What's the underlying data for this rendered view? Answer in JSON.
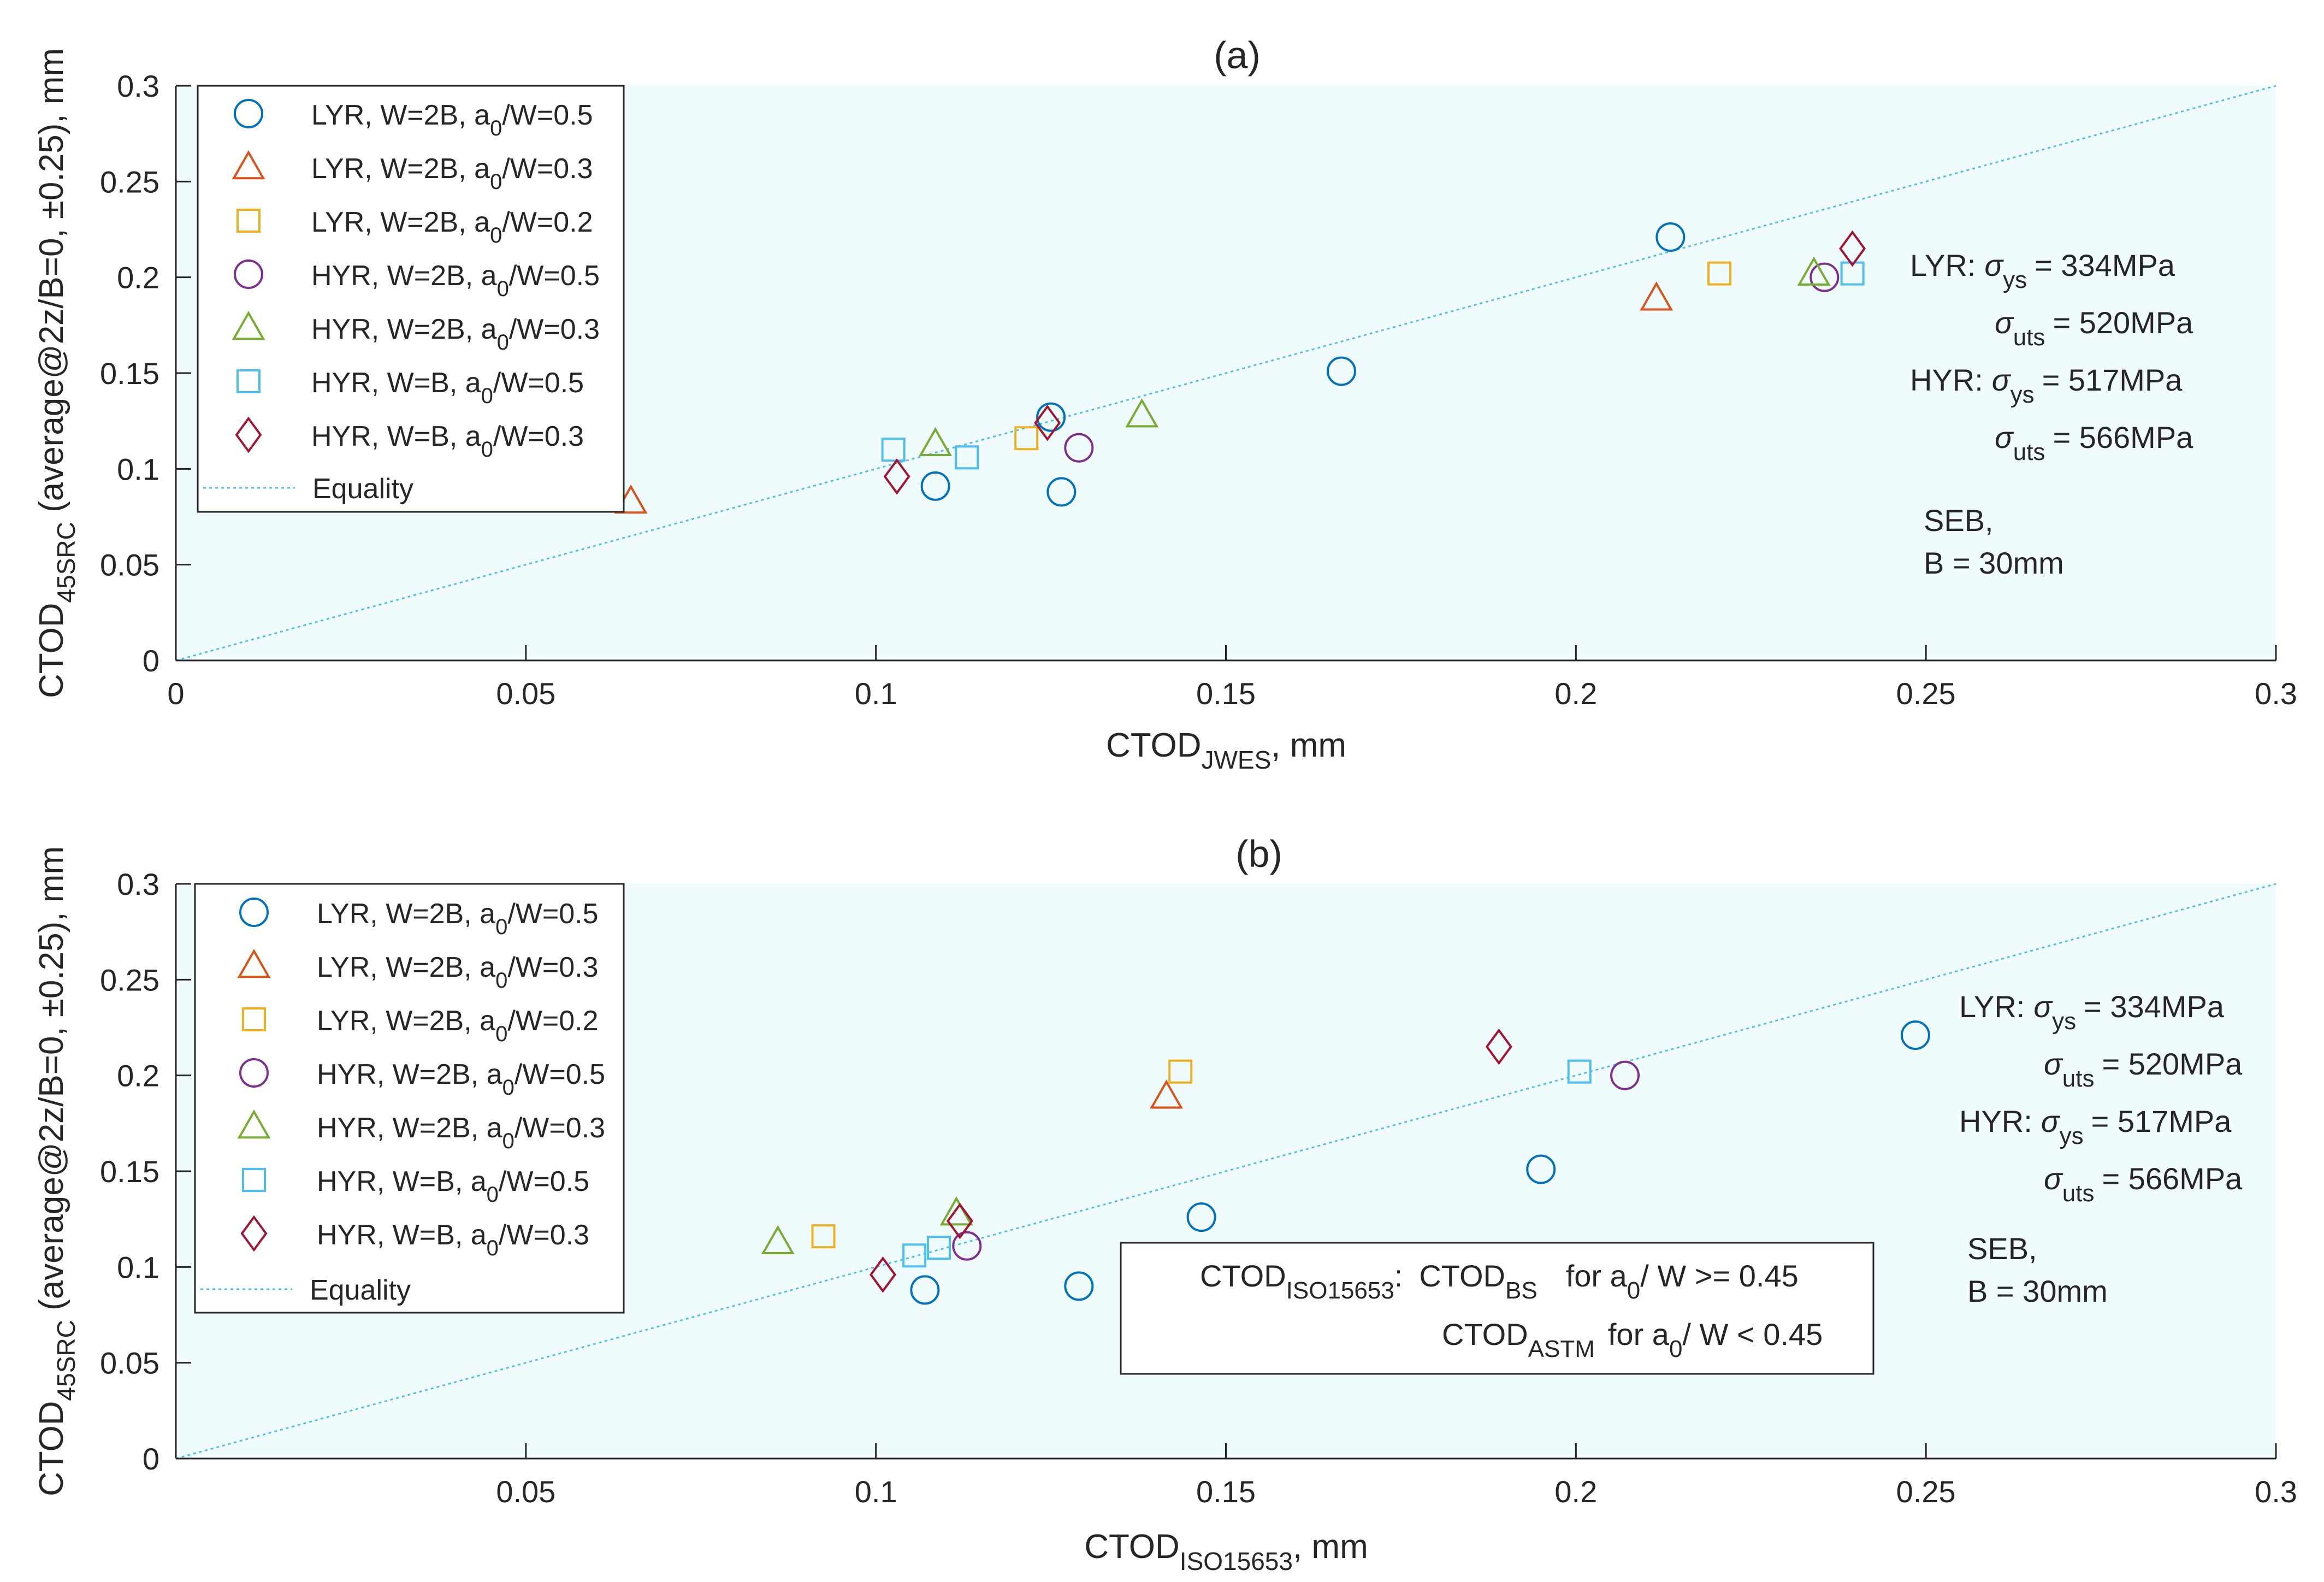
{
  "plot_bg_color": "#f0fbfd",
  "colors": {
    "lyr_w2b_05": "#0072bd",
    "lyr_w2b_03": "#d95319",
    "lyr_w2b_02": "#edb120",
    "hyr_w2b_05": "#7e2f8e",
    "hyr_w2b_03": "#77ac30",
    "hyr_wb_05": "#4dbeee",
    "hyr_wb_03": "#a2142f",
    "equality": "#4dbeee"
  },
  "chart_data": [
    {
      "type": "scatter",
      "title": "(a)",
      "xlabel": {
        "base": "CTOD",
        "sub": "JWES",
        "suffix": ", mm"
      },
      "ylabel": {
        "base": "CTOD",
        "sub": "45SRC",
        "suffix": " (average@2z/B=0, ±0.25), mm"
      },
      "xlim": [
        0,
        0.3
      ],
      "ylim": [
        0,
        0.3
      ],
      "xticks": [
        "0",
        "0.05",
        "0.1",
        "0.15",
        "0.2",
        "0.25",
        "0.3"
      ],
      "yticks": [
        "0",
        "0.05",
        "0.1",
        "0.15",
        "0.2",
        "0.25",
        "0.3"
      ],
      "series": [
        {
          "name": "LYR, W=2B, a0/W=0.5",
          "legend": {
            "pre": "LYR, W=2B, a",
            "sub": "0",
            "post": "/W=0.5"
          },
          "marker": "circle",
          "color_key": "lyr_w2b_05",
          "points": [
            [
              0.1085,
              0.091
            ],
            [
              0.1265,
              0.088
            ],
            [
              0.125,
              0.127
            ],
            [
              0.1665,
              0.151
            ],
            [
              0.2135,
              0.221
            ]
          ]
        },
        {
          "name": "LYR, W=2B, a0/W=0.3",
          "legend": {
            "pre": "LYR, W=2B, a",
            "sub": "0",
            "post": "/W=0.3"
          },
          "marker": "triangle",
          "color_key": "lyr_w2b_03",
          "points": [
            [
              0.065,
              0.083
            ],
            [
              0.2115,
              0.189
            ]
          ]
        },
        {
          "name": "LYR, W=2B, a0/W=0.2",
          "legend": {
            "pre": "LYR, W=2B, a",
            "sub": "0",
            "post": "/W=0.2"
          },
          "marker": "square",
          "color_key": "lyr_w2b_02",
          "points": [
            [
              0.1215,
              0.116
            ],
            [
              0.2205,
              0.202
            ]
          ]
        },
        {
          "name": "HYR, W=2B, a0/W=0.5",
          "legend": {
            "pre": "HYR, W=2B, a",
            "sub": "0",
            "post": "/W=0.5"
          },
          "marker": "circle",
          "color_key": "hyr_w2b_05",
          "points": [
            [
              0.129,
              0.111
            ],
            [
              0.2355,
              0.2
            ]
          ]
        },
        {
          "name": "HYR, W=2B, a0/W=0.3",
          "legend": {
            "pre": "HYR, W=2B, a",
            "sub": "0",
            "post": "/W=0.3"
          },
          "marker": "triangle",
          "color_key": "hyr_w2b_03",
          "points": [
            [
              0.1085,
              0.113
            ],
            [
              0.138,
              0.128
            ],
            [
              0.234,
              0.202
            ]
          ]
        },
        {
          "name": "HYR, W=B, a0/W=0.5",
          "legend": {
            "pre": "HYR, W=B, a",
            "sub": "0",
            "post": "/W=0.5"
          },
          "marker": "square",
          "color_key": "hyr_wb_05",
          "points": [
            [
              0.1025,
              0.11
            ],
            [
              0.113,
              0.106
            ],
            [
              0.2395,
              0.202
            ]
          ]
        },
        {
          "name": "HYR, W=B, a0/W=0.3",
          "legend": {
            "pre": "HYR, W=B, a",
            "sub": "0",
            "post": "/W=0.3"
          },
          "marker": "diamond",
          "color_key": "hyr_wb_03",
          "points": [
            [
              0.103,
              0.096
            ],
            [
              0.1245,
              0.124
            ],
            [
              0.2395,
              0.215
            ]
          ]
        }
      ],
      "equality_label": "Equality",
      "equality_line": [
        [
          0,
          0
        ],
        [
          0.3,
          0.3
        ]
      ],
      "annotations": {
        "lyr_prefix": "LYR:",
        "hyr_prefix": "HYR:",
        "sigma": "σ",
        "ys_sub": "ys",
        "uts_sub": "uts",
        "lyr_ys_val": "= 334MPa",
        "lyr_uts_val": "= 520MPa",
        "hyr_ys_val": "= 517MPa",
        "hyr_uts_val": "= 566MPa",
        "seb_line1": "SEB,",
        "seb_line2": "B = 30mm"
      }
    },
    {
      "type": "scatter",
      "title": "(b)",
      "xlabel": {
        "base": "CTOD",
        "sub": "ISO15653",
        "suffix": ", mm"
      },
      "ylabel": {
        "base": "CTOD",
        "sub": "45SRC",
        "suffix": " (average@2z/B=0, ±0.25), mm"
      },
      "xlim": [
        0,
        0.3
      ],
      "ylim": [
        0,
        0.3
      ],
      "xticks": [
        "0.05",
        "0.1",
        "0.15",
        "0.2",
        "0.25",
        "0.3"
      ],
      "yticks": [
        "0",
        "0.05",
        "0.1",
        "0.15",
        "0.2",
        "0.25",
        "0.3"
      ],
      "series": [
        {
          "name": "LYR, W=2B, a0/W=0.5",
          "legend": {
            "pre": "LYR, W=2B, a",
            "sub": "0",
            "post": "/W=0.5"
          },
          "marker": "circle",
          "color_key": "lyr_w2b_05",
          "points": [
            [
              0.107,
              0.088
            ],
            [
              0.129,
              0.09
            ],
            [
              0.1465,
              0.126
            ],
            [
              0.195,
              0.151
            ],
            [
              0.2485,
              0.221
            ]
          ]
        },
        {
          "name": "LYR, W=2B, a0/W=0.3",
          "legend": {
            "pre": "LYR, W=2B, a",
            "sub": "0",
            "post": "/W=0.3"
          },
          "marker": "triangle",
          "color_key": "lyr_w2b_03",
          "points": [
            [
              0.1415,
              0.189
            ]
          ]
        },
        {
          "name": "LYR, W=2B, a0/W=0.2",
          "legend": {
            "pre": "LYR, W=2B, a",
            "sub": "0",
            "post": "/W=0.2"
          },
          "marker": "square",
          "color_key": "lyr_w2b_02",
          "points": [
            [
              0.0925,
              0.116
            ],
            [
              0.1435,
              0.202
            ]
          ]
        },
        {
          "name": "HYR, W=2B, a0/W=0.5",
          "legend": {
            "pre": "HYR, W=2B, a",
            "sub": "0",
            "post": "/W=0.5"
          },
          "marker": "circle",
          "color_key": "hyr_w2b_05",
          "points": [
            [
              0.113,
              0.111
            ],
            [
              0.207,
              0.2
            ]
          ]
        },
        {
          "name": "HYR, W=2B, a0/W=0.3",
          "legend": {
            "pre": "HYR, W=2B, a",
            "sub": "0",
            "post": "/W=0.3"
          },
          "marker": "triangle",
          "color_key": "hyr_w2b_03",
          "points": [
            [
              0.086,
              0.113
            ],
            [
              0.1115,
              0.128
            ]
          ]
        },
        {
          "name": "HYR, W=B, a0/W=0.5",
          "legend": {
            "pre": "HYR, W=B, a",
            "sub": "0",
            "post": "/W=0.5"
          },
          "marker": "square",
          "color_key": "hyr_wb_05",
          "points": [
            [
              0.1055,
              0.106
            ],
            [
              0.109,
              0.11
            ],
            [
              0.2005,
              0.202
            ]
          ]
        },
        {
          "name": "HYR, W=B, a0/W=0.3",
          "legend": {
            "pre": "HYR, W=B, a",
            "sub": "0",
            "post": "/W=0.3"
          },
          "marker": "diamond",
          "color_key": "hyr_wb_03",
          "points": [
            [
              0.101,
              0.096
            ],
            [
              0.112,
              0.124
            ],
            [
              0.189,
              0.215
            ]
          ]
        }
      ],
      "equality_label": "Equality",
      "equality_line": [
        [
          0,
          0
        ],
        [
          0.3,
          0.3
        ]
      ],
      "annotations": {
        "lyr_prefix": "LYR:",
        "hyr_prefix": "HYR:",
        "sigma": "σ",
        "ys_sub": "ys",
        "uts_sub": "uts",
        "lyr_ys_val": "= 334MPa",
        "lyr_uts_val": "= 520MPa",
        "hyr_ys_val": "= 517MPa",
        "hyr_uts_val": "= 566MPa",
        "seb_line1": "SEB,",
        "seb_line2": "B = 30mm"
      },
      "method_box": {
        "line1": {
          "base": "CTOD",
          "sub": "ISO15653",
          "colon": ":",
          "method_base": "CTOD",
          "method_sub": "BS",
          "cond_pre": "for a",
          "cond_sub": "0",
          "cond_post": "/ W >= 0.45"
        },
        "line2": {
          "method_base": "CTOD",
          "method_sub": "ASTM",
          "cond_pre": "for a",
          "cond_sub": "0",
          "cond_post": "/ W < 0.45"
        }
      }
    }
  ]
}
